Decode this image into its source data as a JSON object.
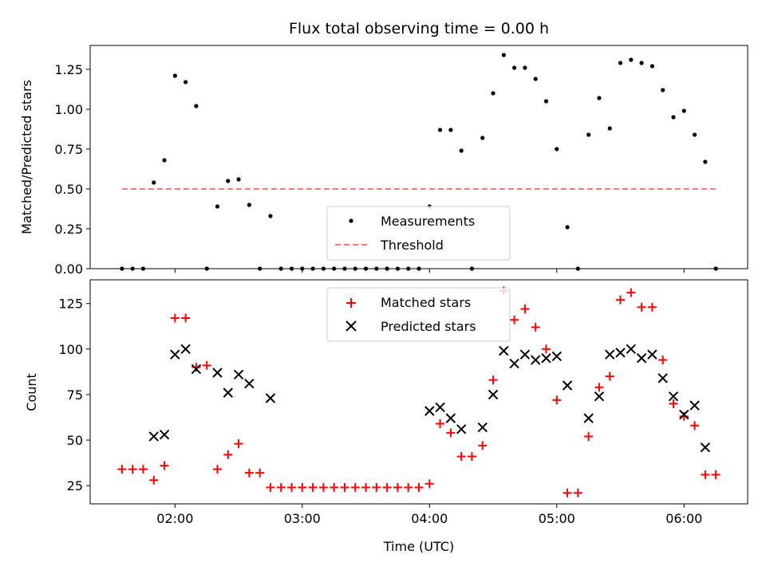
{
  "figure": {
    "title": "Flux total observing time = 0.00 h"
  },
  "chart_data": [
    {
      "type": "scatter",
      "panel": "top",
      "title": "Flux total observing time = 0.00 h",
      "xlabel": "",
      "ylabel": "Matched/Predicted stars",
      "xlim": [
        "01:20",
        "06:30"
      ],
      "ylim": [
        0,
        1.4
      ],
      "yticks": [
        0.0,
        0.25,
        0.5,
        0.75,
        1.0,
        1.25
      ],
      "ytick_labels": [
        "0.00",
        "0.25",
        "0.50",
        "0.75",
        "1.00",
        "1.25"
      ],
      "xticks": [
        "02:00",
        "03:00",
        "04:00",
        "05:00",
        "06:00"
      ],
      "legend_position": "lower-center",
      "series": [
        {
          "name": "Measurements",
          "marker": "dot",
          "color": "#000000",
          "x": [
            "01:35",
            "01:40",
            "01:45",
            "01:50",
            "01:55",
            "02:00",
            "02:05",
            "02:10",
            "02:15",
            "02:20",
            "02:25",
            "02:30",
            "02:35",
            "02:40",
            "02:45",
            "02:50",
            "02:55",
            "03:00",
            "03:05",
            "03:10",
            "03:15",
            "03:20",
            "03:25",
            "03:30",
            "03:35",
            "03:40",
            "03:45",
            "03:50",
            "03:55",
            "04:00",
            "04:05",
            "04:10",
            "04:15",
            "04:20",
            "04:25",
            "04:30",
            "04:35",
            "04:40",
            "04:45",
            "04:50",
            "04:55",
            "05:00",
            "05:05",
            "05:10",
            "05:15",
            "05:20",
            "05:25",
            "05:30",
            "05:35",
            "05:40",
            "05:45",
            "05:50",
            "05:55",
            "06:00",
            "06:05",
            "06:10",
            "06:15"
          ],
          "y": [
            0,
            0,
            0,
            0.54,
            0.68,
            1.21,
            1.17,
            1.02,
            0,
            0.39,
            0.55,
            0.56,
            0.4,
            0,
            0.33,
            0,
            0,
            0,
            0,
            0,
            0,
            0,
            0,
            0,
            0,
            0,
            0,
            0,
            0,
            0.39,
            0.87,
            0.87,
            0.74,
            0,
            0.82,
            1.1,
            1.34,
            1.26,
            1.26,
            1.19,
            1.05,
            0.75,
            0.26,
            0,
            0.84,
            1.07,
            0.88,
            1.29,
            1.31,
            1.29,
            1.27,
            1.12,
            0.95,
            0.99,
            0.84,
            0.67,
            0
          ]
        },
        {
          "name": "Threshold",
          "style": "dashed",
          "color": "#ff7777",
          "x": [
            "01:35",
            "06:15"
          ],
          "y": [
            0.5,
            0.5
          ]
        }
      ]
    },
    {
      "type": "scatter",
      "panel": "bottom",
      "xlabel": "Time (UTC)",
      "ylabel": "Count",
      "xlim": [
        "01:20",
        "06:30"
      ],
      "ylim": [
        15,
        138
      ],
      "yticks": [
        25,
        50,
        75,
        100,
        125
      ],
      "ytick_labels": [
        "25",
        "50",
        "75",
        "100",
        "125"
      ],
      "xticks": [
        "02:00",
        "03:00",
        "04:00",
        "05:00",
        "06:00"
      ],
      "legend_position": "upper-center",
      "series": [
        {
          "name": "Matched stars",
          "marker": "plus",
          "color": "#ff0000",
          "x": [
            "01:35",
            "01:40",
            "01:45",
            "01:50",
            "01:55",
            "02:00",
            "02:05",
            "02:10",
            "02:15",
            "02:20",
            "02:25",
            "02:30",
            "02:35",
            "02:40",
            "02:45",
            "02:50",
            "02:55",
            "03:00",
            "03:05",
            "03:10",
            "03:15",
            "03:20",
            "03:25",
            "03:30",
            "03:35",
            "03:40",
            "03:45",
            "03:50",
            "03:55",
            "04:00",
            "04:05",
            "04:10",
            "04:15",
            "04:20",
            "04:25",
            "04:30",
            "04:35",
            "04:40",
            "04:45",
            "04:50",
            "04:55",
            "05:00",
            "05:05",
            "05:10",
            "05:15",
            "05:20",
            "05:25",
            "05:30",
            "05:35",
            "05:40",
            "05:45",
            "05:50",
            "05:55",
            "06:00",
            "06:05",
            "06:10",
            "06:15"
          ],
          "y": [
            34,
            34,
            34,
            28,
            36,
            117,
            117,
            90,
            91,
            34,
            42,
            48,
            32,
            32,
            24,
            24,
            24,
            24,
            24,
            24,
            24,
            24,
            24,
            24,
            24,
            24,
            24,
            24,
            24,
            26,
            59,
            54,
            41,
            41,
            47,
            83,
            132,
            116,
            122,
            112,
            100,
            72,
            21,
            21,
            52,
            79,
            85,
            127,
            131,
            123,
            123,
            94,
            70,
            63,
            58,
            31,
            31
          ]
        },
        {
          "name": "Predicted stars",
          "marker": "x",
          "color": "#000000",
          "x": [
            "01:50",
            "01:55",
            "02:00",
            "02:05",
            "02:10",
            "02:20",
            "02:25",
            "02:30",
            "02:35",
            "02:45",
            "04:00",
            "04:05",
            "04:10",
            "04:15",
            "04:25",
            "04:30",
            "04:35",
            "04:40",
            "04:45",
            "04:50",
            "04:55",
            "05:00",
            "05:05",
            "05:15",
            "05:20",
            "05:25",
            "05:30",
            "05:35",
            "05:40",
            "05:45",
            "05:50",
            "05:55",
            "06:00",
            "06:05",
            "06:10"
          ],
          "y": [
            52,
            53,
            97,
            100,
            89,
            87,
            76,
            86,
            81,
            73,
            66,
            68,
            62,
            56,
            57,
            75,
            99,
            92,
            97,
            94,
            95,
            96,
            80,
            62,
            74,
            97,
            98,
            100,
            95,
            97,
            84,
            74,
            64,
            69,
            46
          ]
        }
      ]
    }
  ]
}
